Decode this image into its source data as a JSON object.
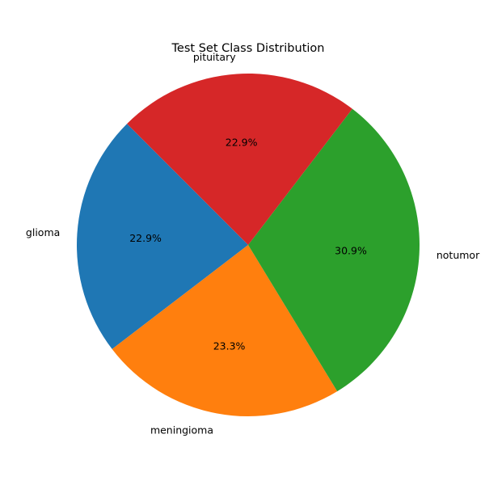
{
  "chart_data": {
    "type": "pie",
    "title": "Test Set Class Distribution",
    "start_angle_deg": 135,
    "direction": "counterclockwise",
    "slices": [
      {
        "label": "glioma",
        "value": 22.9,
        "pct_label": "22.9%",
        "color": "#1f77b4"
      },
      {
        "label": "meningioma",
        "value": 23.3,
        "pct_label": "23.3%",
        "color": "#ff7f0e"
      },
      {
        "label": "notumor",
        "value": 30.9,
        "pct_label": "30.9%",
        "color": "#2ca02c"
      },
      {
        "label": "pituitary",
        "value": 22.9,
        "pct_label": "22.9%",
        "color": "#d62728"
      }
    ]
  }
}
